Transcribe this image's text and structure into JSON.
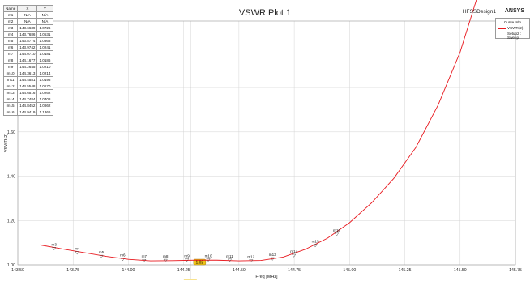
{
  "header": {
    "title": "VSWR Plot 1",
    "design": "HFSSDesign1",
    "brand": "ANSYS"
  },
  "marker_table": {
    "headers": [
      "Name",
      "X",
      "Y"
    ],
    "rows": [
      [
        "m1",
        "N/A",
        "N/A"
      ],
      [
        "m2",
        "N/A",
        "N/A"
      ],
      [
        "m3",
        "143.6639",
        "1.0726"
      ],
      [
        "m4",
        "143.7686",
        "1.0531"
      ],
      [
        "m5",
        "143.8774",
        "1.0368"
      ],
      [
        "m6",
        "143.9742",
        "1.0241"
      ],
      [
        "m7",
        "144.0710",
        "1.0181"
      ],
      [
        "m8",
        "144.1677",
        "1.0186"
      ],
      [
        "m9",
        "144.2645",
        "1.0210"
      ],
      [
        "m10",
        "144.3613",
        "1.0214"
      ],
      [
        "m11",
        "144.4581",
        "1.0198"
      ],
      [
        "m12",
        "144.5548",
        "1.0170"
      ],
      [
        "m13",
        "144.6516",
        "1.0262"
      ],
      [
        "m14",
        "144.7484",
        "1.0408"
      ],
      [
        "m15",
        "144.8452",
        "1.0862"
      ],
      [
        "m16",
        "144.9419",
        "1.1366"
      ]
    ]
  },
  "legend": {
    "title": "Curve Info",
    "series_name": "VSWR(2)",
    "setup": "Setup2 : Sweep"
  },
  "colors": {
    "series": "#e8191f",
    "grid": "#d4d4d4",
    "cursor": "#f0c419"
  },
  "cursor_label": "1.02",
  "chart_data": {
    "type": "line",
    "title": "VSWR Plot 1",
    "xlabel": "Freq [MHz]",
    "ylabel": "VSWR(2)",
    "xlim": [
      143.5,
      145.75
    ],
    "ylim": [
      1.0,
      2.1
    ],
    "grid": true,
    "x_ticks": [
      143.5,
      143.75,
      144.0,
      144.25,
      144.5,
      144.75,
      145.0,
      145.25,
      145.5,
      145.75
    ],
    "x_tick_labels": [
      "143.50",
      "143.75",
      "144.00",
      "144.25",
      "144.50",
      "144.75",
      "145.00",
      "145.25",
      "145.50",
      "145.75"
    ],
    "y_ticks": [
      1.0,
      1.2,
      1.4,
      1.6,
      1.8
    ],
    "y_tick_labels": [
      "1.00",
      "1.20",
      "1.40",
      "1.60",
      "1.80"
    ],
    "series": [
      {
        "name": "VSWR(2)",
        "x": [
          143.6,
          143.7,
          143.8,
          143.9,
          144.0,
          144.1,
          144.2,
          144.3,
          144.4,
          144.5,
          144.6,
          144.7,
          144.8,
          144.9,
          145.0,
          145.1,
          145.2,
          145.3,
          145.4,
          145.5,
          145.6
        ],
        "values": [
          1.09,
          1.072,
          1.055,
          1.038,
          1.025,
          1.018,
          1.019,
          1.021,
          1.021,
          1.018,
          1.02,
          1.035,
          1.07,
          1.12,
          1.19,
          1.28,
          1.39,
          1.53,
          1.72,
          1.96,
          2.28
        ]
      }
    ],
    "cursor_x": 144.28,
    "markers": [
      {
        "name": "m3",
        "x": 143.6639,
        "y": 1.0726
      },
      {
        "name": "m4",
        "x": 143.7686,
        "y": 1.0531
      },
      {
        "name": "m5",
        "x": 143.8774,
        "y": 1.0368
      },
      {
        "name": "m6",
        "x": 143.9742,
        "y": 1.0241
      },
      {
        "name": "m7",
        "x": 144.071,
        "y": 1.0181
      },
      {
        "name": "m8",
        "x": 144.1677,
        "y": 1.0186
      },
      {
        "name": "m9",
        "x": 144.2645,
        "y": 1.021
      },
      {
        "name": "m10",
        "x": 144.3613,
        "y": 1.0214
      },
      {
        "name": "m11",
        "x": 144.4581,
        "y": 1.0198
      },
      {
        "name": "m12",
        "x": 144.5548,
        "y": 1.017
      },
      {
        "name": "m13",
        "x": 144.6516,
        "y": 1.0262
      },
      {
        "name": "m14",
        "x": 144.7484,
        "y": 1.0408
      },
      {
        "name": "m15",
        "x": 144.8452,
        "y": 1.0862
      },
      {
        "name": "m16",
        "x": 144.9419,
        "y": 1.1366
      }
    ]
  }
}
